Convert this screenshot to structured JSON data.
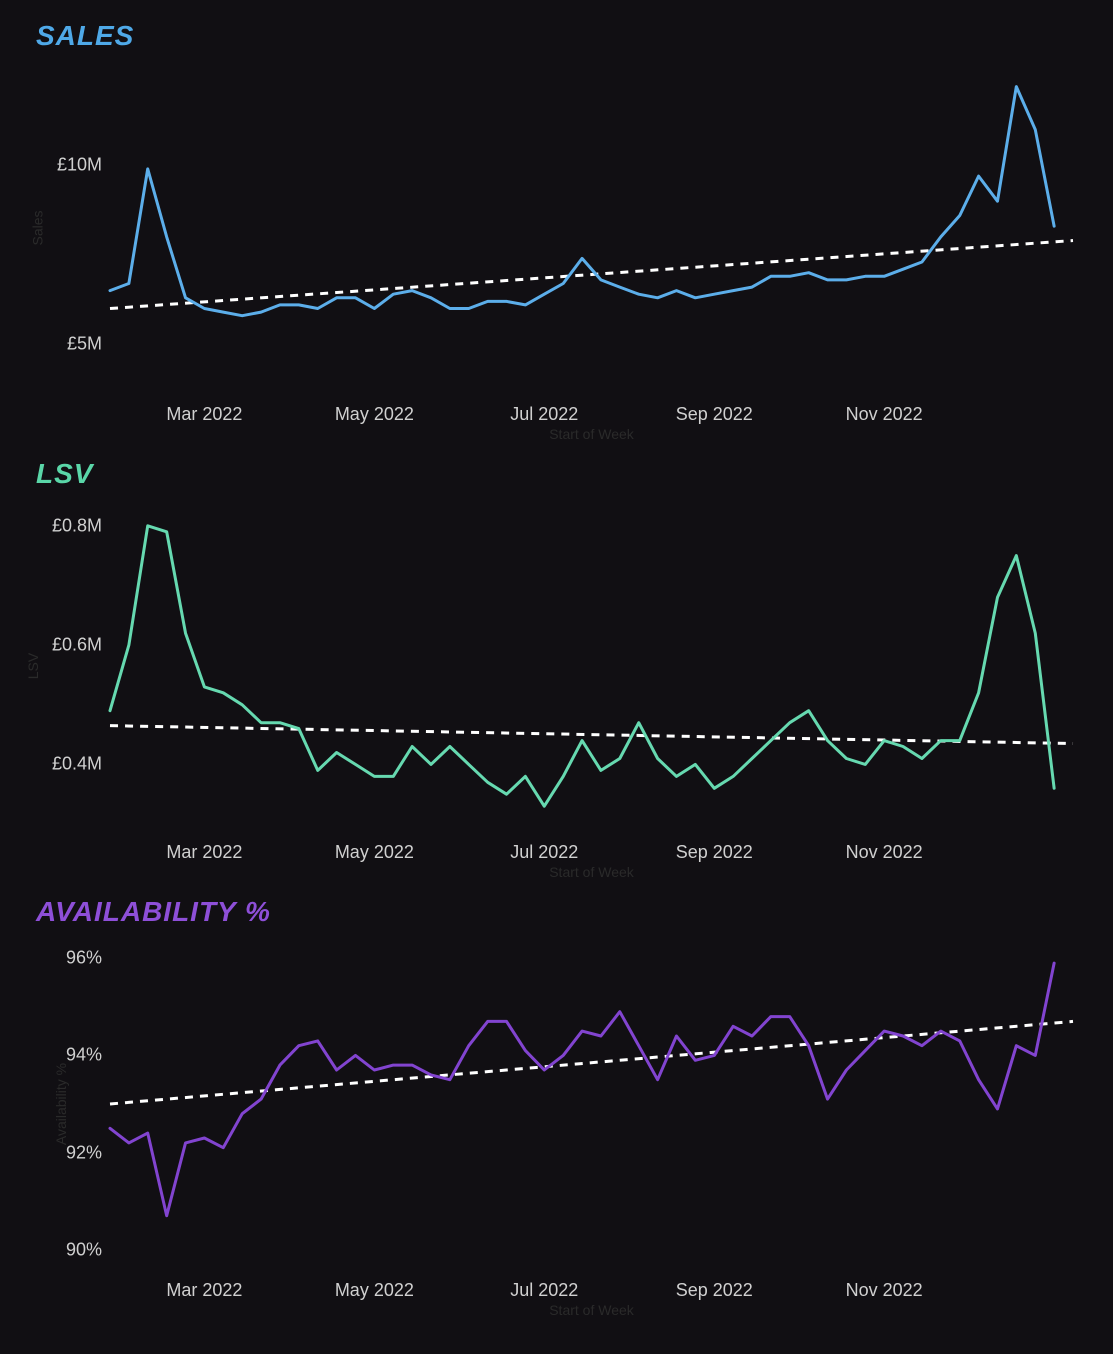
{
  "background_color": "#110f13",
  "axis_text_color": "#d0d0d0",
  "axis_fontsize": 18,
  "title_fontsize": 28,
  "title_fontweight": 900,
  "title_fontstyle": "italic",
  "trend_line": {
    "color": "#ffffff",
    "dash": "8 7",
    "width": 3
  },
  "series_line_width": 3,
  "x_axis": {
    "min": 0,
    "max": 51,
    "ticks": [
      {
        "pos": 5,
        "label": "Mar 2022"
      },
      {
        "pos": 14,
        "label": "May 2022"
      },
      {
        "pos": 23,
        "label": "Jul 2022"
      },
      {
        "pos": 32,
        "label": "Sep 2022"
      },
      {
        "pos": 41,
        "label": "Nov 2022"
      }
    ],
    "sublabel": "Start of Week"
  },
  "charts": [
    {
      "id": "sales",
      "title": "SALES",
      "title_color": "#4fa9e8",
      "line_color": "#5caeea",
      "type": "line",
      "y_min": 3.5,
      "y_max": 13,
      "y_ticks": [
        {
          "value": 10,
          "label": "£10M"
        },
        {
          "value": 5,
          "label": "£5M"
        }
      ],
      "y_sublabel": "Sales",
      "values": [
        6.5,
        6.7,
        9.9,
        8.0,
        6.3,
        6.0,
        5.9,
        5.8,
        5.9,
        6.1,
        6.1,
        6.0,
        6.3,
        6.3,
        6.0,
        6.4,
        6.5,
        6.3,
        6.0,
        6.0,
        6.2,
        6.2,
        6.1,
        6.4,
        6.7,
        7.4,
        6.8,
        6.6,
        6.4,
        6.3,
        6.5,
        6.3,
        6.4,
        6.5,
        6.6,
        6.9,
        6.9,
        7.0,
        6.8,
        6.8,
        6.9,
        6.9,
        7.1,
        7.3,
        8.0,
        8.6,
        9.7,
        9.0,
        12.2,
        11.0,
        8.3
      ],
      "trend_start": 6.0,
      "trend_end": 7.9
    },
    {
      "id": "lsv",
      "title": "LSV",
      "title_color": "#5ad6a8",
      "line_color": "#66d9b0",
      "type": "line",
      "y_min": 0.28,
      "y_max": 0.85,
      "y_ticks": [
        {
          "value": 0.8,
          "label": "£0.8M"
        },
        {
          "value": 0.6,
          "label": "£0.6M"
        },
        {
          "value": 0.4,
          "label": "£0.4M"
        }
      ],
      "y_sublabel": "LSV",
      "values": [
        0.49,
        0.6,
        0.8,
        0.79,
        0.62,
        0.53,
        0.52,
        0.5,
        0.47,
        0.47,
        0.46,
        0.39,
        0.42,
        0.4,
        0.38,
        0.38,
        0.43,
        0.4,
        0.43,
        0.4,
        0.37,
        0.35,
        0.38,
        0.33,
        0.38,
        0.44,
        0.39,
        0.41,
        0.47,
        0.41,
        0.38,
        0.4,
        0.36,
        0.38,
        0.41,
        0.44,
        0.47,
        0.49,
        0.44,
        0.41,
        0.4,
        0.44,
        0.43,
        0.41,
        0.44,
        0.44,
        0.52,
        0.68,
        0.75,
        0.62,
        0.36
      ],
      "trend_start": 0.465,
      "trend_end": 0.435
    },
    {
      "id": "availability",
      "title": "AVAILABILITY %",
      "title_color": "#8e4fd8",
      "line_color": "#8244d0",
      "type": "line",
      "y_min": 89.5,
      "y_max": 96.5,
      "y_ticks": [
        {
          "value": 96,
          "label": "96%"
        },
        {
          "value": 94,
          "label": "94%"
        },
        {
          "value": 92,
          "label": "92%"
        },
        {
          "value": 90,
          "label": "90%"
        }
      ],
      "y_sublabel": "Availability %",
      "values": [
        92.5,
        92.2,
        92.4,
        90.7,
        92.2,
        92.3,
        92.1,
        92.8,
        93.1,
        93.8,
        94.2,
        94.3,
        93.7,
        94.0,
        93.7,
        93.8,
        93.8,
        93.6,
        93.5,
        94.2,
        94.7,
        94.7,
        94.1,
        93.7,
        94.0,
        94.5,
        94.4,
        94.9,
        94.2,
        93.5,
        94.4,
        93.9,
        94.0,
        94.6,
        94.4,
        94.8,
        94.8,
        94.2,
        93.1,
        93.7,
        94.1,
        94.5,
        94.4,
        94.2,
        94.5,
        94.3,
        93.5,
        92.9,
        94.2,
        94.0,
        95.9
      ],
      "trend_start": 93.0,
      "trend_end": 94.7
    }
  ]
}
